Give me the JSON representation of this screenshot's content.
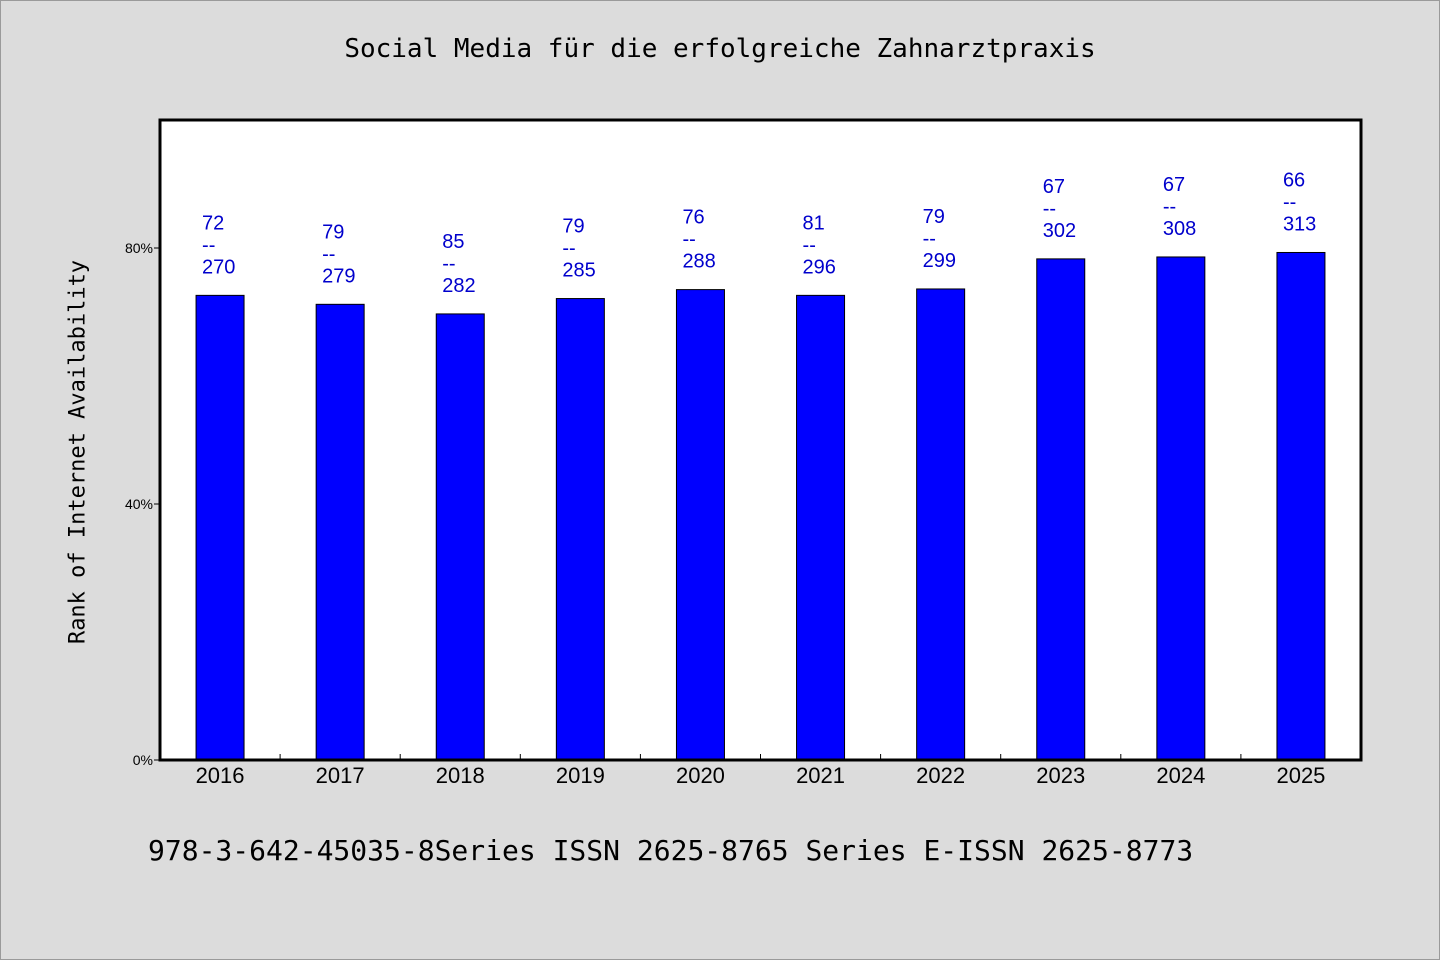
{
  "chart_data": {
    "type": "bar",
    "title": "Social Media für die erfolgreiche Zahnarztpraxis",
    "ylabel": "Rank of Internet Availability",
    "xlabel": "",
    "categories": [
      "2016",
      "2017",
      "2018",
      "2019",
      "2020",
      "2021",
      "2022",
      "2023",
      "2024",
      "2025"
    ],
    "values": [
      72.6,
      71.2,
      69.7,
      72.1,
      73.5,
      72.6,
      73.6,
      78.3,
      78.6,
      79.3
    ],
    "ylim": [
      0,
      100
    ],
    "yticks": [
      0,
      40,
      80
    ],
    "ytick_labels": [
      "0%",
      "40%",
      "80%"
    ],
    "data_labels": [
      {
        "top": "72",
        "sep": "--",
        "bottom": "270"
      },
      {
        "top": "79",
        "sep": "--",
        "bottom": "279"
      },
      {
        "top": "85",
        "sep": "--",
        "bottom": "282"
      },
      {
        "top": "79",
        "sep": "--",
        "bottom": "285"
      },
      {
        "top": "76",
        "sep": "--",
        "bottom": "288"
      },
      {
        "top": "81",
        "sep": "--",
        "bottom": "296"
      },
      {
        "top": "79",
        "sep": "--",
        "bottom": "299"
      },
      {
        "top": "67",
        "sep": "--",
        "bottom": "302"
      },
      {
        "top": "67",
        "sep": "--",
        "bottom": "308"
      },
      {
        "top": "66",
        "sep": "--",
        "bottom": "313"
      }
    ],
    "grid": false,
    "colors": {
      "bar": "#0000ff",
      "label": "#0000cc",
      "background": "#dcdcdc",
      "plot_background": "#ffffff"
    }
  },
  "footer": {
    "text": "978-3-642-45035-8Series ISSN 2625-8765 Series E-ISSN 2625-8773"
  }
}
